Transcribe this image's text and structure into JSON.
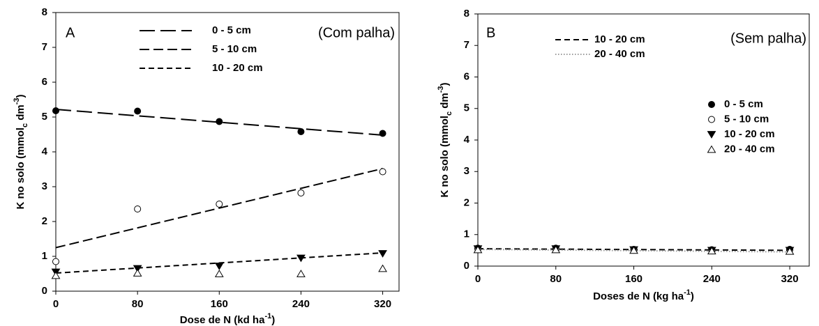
{
  "chart_data": [
    {
      "type": "scatter",
      "label": "A",
      "annotation": "(Com palha)",
      "xlabel": [
        "Dose de N (kd ha",
        "-1",
        ")"
      ],
      "ylabel": [
        "K no solo (mmol",
        "c",
        " dm",
        "-3",
        ")"
      ],
      "x": [
        0,
        80,
        160,
        240,
        320
      ],
      "xlim": [
        0,
        336
      ],
      "xticks": [
        0,
        80,
        160,
        240,
        320
      ],
      "ylim": [
        0,
        8
      ],
      "yticks": [
        0,
        1,
        2,
        3,
        4,
        5,
        6,
        7,
        8
      ],
      "series": [
        {
          "marker": "circle-filled",
          "color": "#000000",
          "values": [
            5.18,
            5.17,
            4.87,
            4.58,
            4.53
          ]
        },
        {
          "marker": "circle-open",
          "color": "#000000",
          "values": [
            0.85,
            2.36,
            2.5,
            2.82,
            3.43
          ]
        },
        {
          "marker": "triangle-down-filled",
          "color": "#000000",
          "values": [
            0.55,
            0.65,
            0.72,
            0.95,
            1.08
          ]
        },
        {
          "marker": "triangle-up-open",
          "color": "#000000",
          "values": [
            0.45,
            0.52,
            0.5,
            0.5,
            0.65
          ]
        }
      ],
      "fit_lines": [
        {
          "name": "0 - 5 cm",
          "dash": "long",
          "color": "#000000",
          "x": [
            0,
            320
          ],
          "values": [
            5.22,
            4.48
          ]
        },
        {
          "name": "5 - 10 cm",
          "dash": "medium",
          "color": "#000000",
          "x": [
            0,
            320
          ],
          "values": [
            1.25,
            3.52
          ]
        },
        {
          "name": "10 - 20 cm",
          "dash": "short",
          "color": "#000000",
          "x": [
            0,
            320
          ],
          "values": [
            0.52,
            1.1
          ]
        }
      ]
    },
    {
      "type": "scatter",
      "label": "B",
      "annotation": "(Sem palha)",
      "xlabel": [
        "Doses de N (kg ha",
        "-1",
        ")"
      ],
      "ylabel": [
        "K no solo (mmol",
        "c",
        " dm",
        "-3",
        ")"
      ],
      "x": [
        0,
        80,
        160,
        240,
        320
      ],
      "xlim": [
        0,
        340
      ],
      "xticks": [
        0,
        80,
        160,
        240,
        320
      ],
      "ylim": [
        0,
        8
      ],
      "yticks": [
        0,
        1,
        2,
        3,
        4,
        5,
        6,
        7,
        8
      ],
      "series": [
        {
          "name": "0 - 5 cm",
          "marker": "circle-filled",
          "color": "#000000",
          "values": [
            0.57,
            0.57,
            0.53,
            0.52,
            0.53
          ]
        },
        {
          "name": "5 - 10 cm",
          "marker": "circle-open",
          "color": "#000000",
          "values": [
            0.55,
            0.55,
            0.52,
            0.5,
            0.52
          ]
        },
        {
          "name": "10 - 20 cm",
          "marker": "triangle-down-filled",
          "color": "#000000",
          "values": [
            0.55,
            0.55,
            0.52,
            0.5,
            0.5
          ]
        },
        {
          "name": "20 - 40 cm",
          "marker": "triangle-up-open",
          "color": "#000000",
          "values": [
            0.52,
            0.52,
            0.5,
            0.48,
            0.47
          ]
        }
      ],
      "fit_lines": [
        {
          "name": "10 - 20 cm",
          "dash": "short",
          "color": "#000000",
          "x": [
            0,
            320
          ],
          "values": [
            0.55,
            0.5
          ]
        },
        {
          "name": "20 - 40 cm",
          "dash": "dotted",
          "color": "#999999",
          "x": [
            0,
            320
          ],
          "values": [
            0.53,
            0.45
          ]
        }
      ]
    }
  ]
}
